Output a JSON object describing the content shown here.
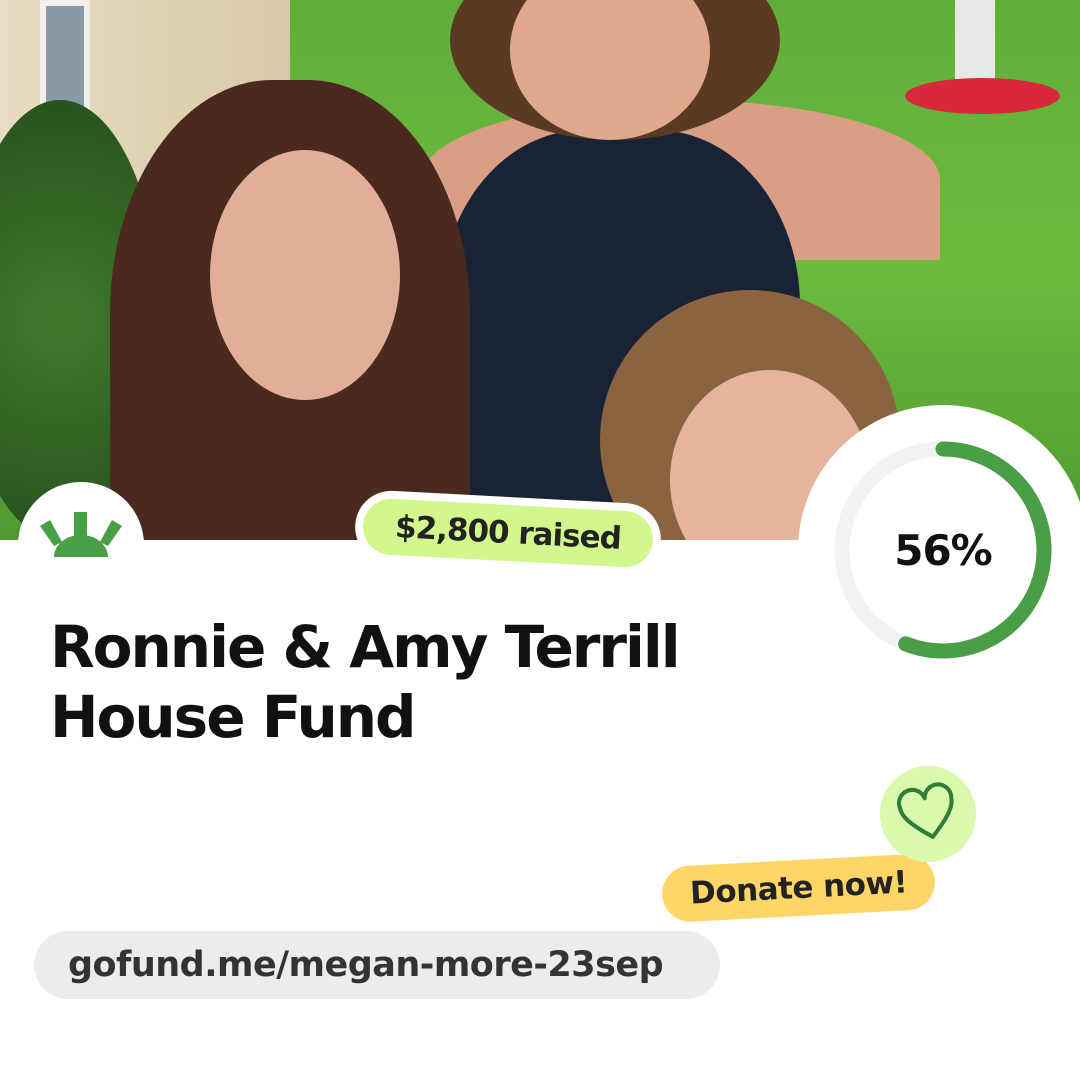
{
  "campaign": {
    "title_line1": "Ronnie & Amy Terrill",
    "title_line2": "House Fund",
    "raised": "$2,800 raised",
    "progress_percent": 56,
    "progress_label": "56%",
    "donate_label": "Donate now!",
    "url": "gofund.me/megan-more-23sep"
  },
  "icons": {
    "logo": "gofundme-sun-logo",
    "heart": "heart-icon"
  },
  "colors": {
    "brand_green": "#4a9e45",
    "raised_badge": "#d2f78c",
    "donate_badge": "#fed667",
    "heart_bg": "#d9f9ad",
    "ring_track": "#f2f2f2"
  }
}
